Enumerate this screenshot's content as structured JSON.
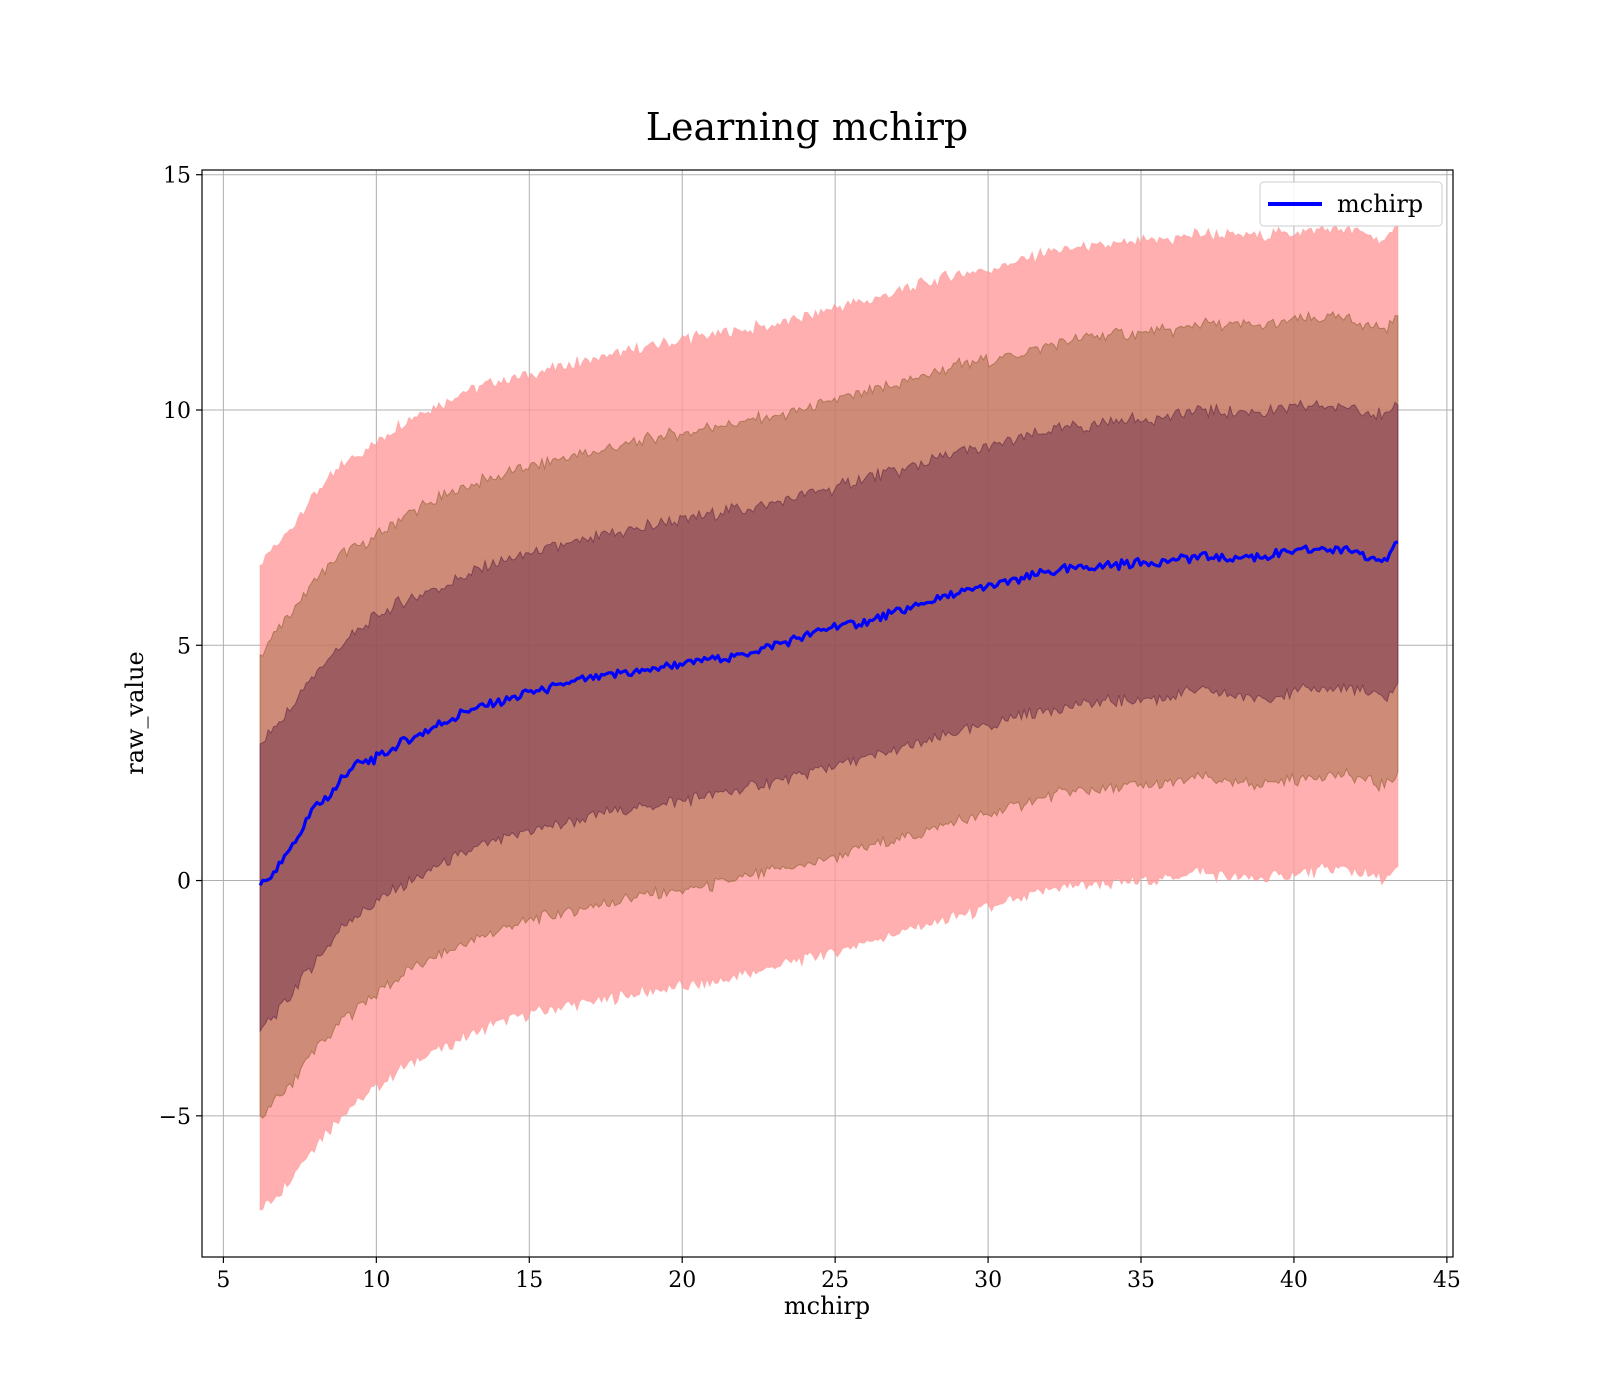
{
  "chart_data": {
    "type": "line",
    "title": "Learning mchirp",
    "xlabel": "mchirp",
    "ylabel": "raw_value",
    "xlim": [
      4.3,
      45.2
    ],
    "ylim": [
      -8.0,
      15.1
    ],
    "xticks": [
      5,
      10,
      15,
      20,
      25,
      30,
      35,
      40,
      45
    ],
    "yticks": [
      -5,
      0,
      5,
      10,
      15
    ],
    "ytick_labels": [
      "−5",
      "0",
      "5",
      "10",
      "15"
    ],
    "grid": true,
    "legend": {
      "position": "top-right",
      "entries": [
        "mchirp"
      ]
    },
    "series": [
      {
        "name": "mchirp",
        "color": "#0000ff",
        "x": [
          6.2,
          6.6,
          7.0,
          7.5,
          8.0,
          8.5,
          9.0,
          9.5,
          10.0,
          10.5,
          11.0,
          12.0,
          13.0,
          14.0,
          15.0,
          16.0,
          17.0,
          18.0,
          19.0,
          20.0,
          21.0,
          22.0,
          23.0,
          24.0,
          25.0,
          26.0,
          27.0,
          28.0,
          29.0,
          30.0,
          31.0,
          32.0,
          33.0,
          34.0,
          35.0,
          36.0,
          37.0,
          38.0,
          39.0,
          40.0,
          41.0,
          42.0,
          43.0,
          43.4
        ],
        "y": [
          -0.1,
          0.1,
          0.5,
          1.0,
          1.6,
          1.8,
          2.3,
          2.5,
          2.6,
          2.8,
          3.0,
          3.3,
          3.6,
          3.8,
          4.0,
          4.15,
          4.3,
          4.4,
          4.5,
          4.6,
          4.7,
          4.8,
          5.0,
          5.2,
          5.4,
          5.5,
          5.7,
          5.9,
          6.1,
          6.25,
          6.4,
          6.55,
          6.65,
          6.7,
          6.75,
          6.8,
          6.9,
          6.85,
          6.9,
          7.0,
          7.05,
          7.0,
          6.8,
          7.2
        ]
      }
    ],
    "bands": [
      {
        "name": "outer",
        "color": "#ff9999",
        "x": [
          6.2,
          7.0,
          8.0,
          9.0,
          10.0,
          11.0,
          12.0,
          13.0,
          14.0,
          15.0,
          16.0,
          17.0,
          18.0,
          19.0,
          20.0,
          21.0,
          22.0,
          23.0,
          24.0,
          25.0,
          26.0,
          27.0,
          28.0,
          29.0,
          30.0,
          31.0,
          32.0,
          33.0,
          34.0,
          35.0,
          36.0,
          37.0,
          38.0,
          39.0,
          40.0,
          41.0,
          42.0,
          43.0,
          43.4
        ],
        "upper": [
          6.7,
          7.3,
          8.2,
          8.9,
          9.3,
          9.8,
          10.1,
          10.4,
          10.6,
          10.75,
          10.9,
          11.05,
          11.2,
          11.35,
          11.5,
          11.6,
          11.7,
          11.8,
          11.95,
          12.15,
          12.3,
          12.5,
          12.7,
          12.9,
          13.0,
          13.15,
          13.35,
          13.45,
          13.5,
          13.55,
          13.6,
          13.75,
          13.7,
          13.7,
          13.8,
          13.85,
          13.8,
          13.6,
          13.9
        ],
        "lower": [
          -7.0,
          -6.5,
          -5.6,
          -4.9,
          -4.4,
          -3.9,
          -3.6,
          -3.3,
          -3.0,
          -2.85,
          -2.7,
          -2.6,
          -2.45,
          -2.35,
          -2.25,
          -2.15,
          -2.0,
          -1.85,
          -1.65,
          -1.5,
          -1.3,
          -1.15,
          -0.95,
          -0.75,
          -0.6,
          -0.4,
          -0.15,
          -0.1,
          -0.05,
          0.0,
          0.05,
          0.2,
          0.05,
          0.05,
          0.15,
          0.25,
          0.2,
          0.0,
          0.3
        ]
      },
      {
        "name": "middle",
        "color": "#8b5a2b",
        "x": [
          6.2,
          7.0,
          8.0,
          9.0,
          10.0,
          11.0,
          12.0,
          13.0,
          14.0,
          15.0,
          16.0,
          17.0,
          18.0,
          19.0,
          20.0,
          21.0,
          22.0,
          23.0,
          24.0,
          25.0,
          26.0,
          27.0,
          28.0,
          29.0,
          30.0,
          31.0,
          32.0,
          33.0,
          34.0,
          35.0,
          36.0,
          37.0,
          38.0,
          39.0,
          40.0,
          41.0,
          42.0,
          43.0,
          43.4
        ],
        "upper": [
          4.8,
          5.5,
          6.4,
          7.0,
          7.3,
          7.8,
          8.1,
          8.4,
          8.6,
          8.8,
          8.95,
          9.1,
          9.25,
          9.4,
          9.5,
          9.65,
          9.75,
          9.85,
          10.0,
          10.2,
          10.35,
          10.55,
          10.75,
          10.95,
          11.05,
          11.2,
          11.4,
          11.5,
          11.6,
          11.65,
          11.7,
          11.85,
          11.8,
          11.8,
          11.9,
          11.95,
          11.9,
          11.7,
          12.0
        ],
        "lower": [
          -5.0,
          -4.5,
          -3.6,
          -2.9,
          -2.4,
          -1.95,
          -1.6,
          -1.3,
          -1.05,
          -0.85,
          -0.7,
          -0.55,
          -0.4,
          -0.3,
          -0.2,
          -0.1,
          0.05,
          0.2,
          0.35,
          0.5,
          0.7,
          0.85,
          1.05,
          1.25,
          1.4,
          1.6,
          1.8,
          1.9,
          1.95,
          2.0,
          2.05,
          2.2,
          2.05,
          2.05,
          2.15,
          2.25,
          2.2,
          2.0,
          2.3
        ]
      },
      {
        "name": "inner",
        "color": "#5a1f40",
        "x": [
          6.2,
          7.0,
          8.0,
          9.0,
          10.0,
          11.0,
          12.0,
          13.0,
          14.0,
          15.0,
          16.0,
          17.0,
          18.0,
          19.0,
          20.0,
          21.0,
          22.0,
          23.0,
          24.0,
          25.0,
          26.0,
          27.0,
          28.0,
          29.0,
          30.0,
          31.0,
          32.0,
          33.0,
          34.0,
          35.0,
          36.0,
          37.0,
          38.0,
          39.0,
          40.0,
          41.0,
          42.0,
          43.0,
          43.4
        ],
        "upper": [
          2.9,
          3.5,
          4.4,
          5.1,
          5.6,
          6.0,
          6.2,
          6.5,
          6.75,
          6.95,
          7.1,
          7.25,
          7.4,
          7.55,
          7.65,
          7.8,
          7.9,
          8.0,
          8.2,
          8.35,
          8.55,
          8.7,
          8.9,
          9.1,
          9.2,
          9.4,
          9.55,
          9.65,
          9.75,
          9.8,
          9.85,
          10.0,
          9.95,
          9.95,
          10.05,
          10.1,
          10.05,
          9.85,
          10.1
        ],
        "lower": [
          -3.2,
          -2.6,
          -1.7,
          -0.9,
          -0.45,
          -0.05,
          0.3,
          0.6,
          0.85,
          1.05,
          1.2,
          1.35,
          1.5,
          1.6,
          1.7,
          1.8,
          1.95,
          2.1,
          2.25,
          2.45,
          2.6,
          2.75,
          2.95,
          3.15,
          3.3,
          3.5,
          3.65,
          3.75,
          3.8,
          3.85,
          3.9,
          4.05,
          3.9,
          3.9,
          4.0,
          4.1,
          4.05,
          3.85,
          4.2
        ]
      }
    ]
  }
}
